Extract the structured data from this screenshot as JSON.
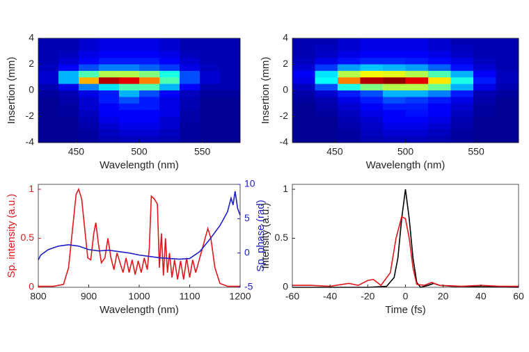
{
  "chart_data": [
    {
      "type": "heatmap",
      "xlabel": "Wavelength (nm)",
      "ylabel": "Insertion (mm)",
      "xlim": [
        420,
        580
      ],
      "ylim": [
        -4,
        4
      ],
      "xticks": [
        450,
        500,
        550
      ],
      "yticks": [
        -4,
        -2,
        0,
        2,
        4
      ],
      "x_edges": [
        420,
        436,
        452,
        468,
        484,
        500,
        516,
        532,
        548,
        564,
        580
      ],
      "y_edges": [
        4,
        3.5,
        3,
        2.5,
        2,
        1.5,
        1,
        0.5,
        0,
        -0.5,
        -1,
        -1.5,
        -2,
        -2.5,
        -3,
        -3.5,
        -4
      ],
      "z": [
        [
          0.05,
          0.05,
          0.08,
          0.1,
          0.1,
          0.1,
          0.08,
          0.05,
          0.05,
          0.05
        ],
        [
          0.05,
          0.05,
          0.08,
          0.1,
          0.1,
          0.1,
          0.08,
          0.05,
          0.05,
          0.05
        ],
        [
          0.05,
          0.06,
          0.1,
          0.12,
          0.12,
          0.12,
          0.1,
          0.06,
          0.05,
          0.05
        ],
        [
          0.05,
          0.08,
          0.12,
          0.15,
          0.15,
          0.15,
          0.12,
          0.08,
          0.05,
          0.05
        ],
        [
          0.06,
          0.12,
          0.2,
          0.25,
          0.25,
          0.22,
          0.18,
          0.1,
          0.06,
          0.05
        ],
        [
          0.08,
          0.3,
          0.45,
          0.55,
          0.55,
          0.5,
          0.4,
          0.2,
          0.08,
          0.05
        ],
        [
          0.08,
          0.3,
          0.7,
          0.95,
          0.9,
          0.75,
          0.45,
          0.2,
          0.08,
          0.05
        ],
        [
          0.05,
          0.1,
          0.25,
          0.35,
          0.45,
          0.45,
          0.3,
          0.12,
          0.05,
          0.05
        ],
        [
          0.03,
          0.05,
          0.1,
          0.15,
          0.3,
          0.2,
          0.12,
          0.06,
          0.03,
          0.03
        ],
        [
          0.02,
          0.04,
          0.08,
          0.15,
          0.2,
          0.15,
          0.1,
          0.05,
          0.02,
          0.02
        ],
        [
          0.02,
          0.03,
          0.08,
          0.12,
          0.15,
          0.15,
          0.1,
          0.05,
          0.02,
          0.02
        ],
        [
          0.02,
          0.03,
          0.06,
          0.12,
          0.12,
          0.12,
          0.1,
          0.04,
          0.02,
          0.02
        ],
        [
          0.02,
          0.02,
          0.05,
          0.1,
          0.12,
          0.12,
          0.08,
          0.04,
          0.02,
          0.02
        ],
        [
          0.02,
          0.02,
          0.04,
          0.08,
          0.1,
          0.1,
          0.08,
          0.03,
          0.02,
          0.02
        ],
        [
          0.02,
          0.02,
          0.03,
          0.06,
          0.08,
          0.08,
          0.06,
          0.03,
          0.02,
          0.02
        ],
        [
          0.02,
          0.02,
          0.03,
          0.05,
          0.06,
          0.06,
          0.05,
          0.03,
          0.02,
          0.02
        ]
      ]
    },
    {
      "type": "heatmap",
      "xlabel": "Wavelength (nm)",
      "ylabel": "Insertion (mm)",
      "xlim": [
        420,
        580
      ],
      "ylim": [
        -4,
        4
      ],
      "xticks": [
        450,
        500,
        550
      ],
      "yticks": [
        -4,
        -2,
        0,
        2,
        4
      ],
      "x_edges": [
        420,
        436,
        452,
        468,
        484,
        500,
        516,
        532,
        548,
        564,
        580
      ],
      "y_edges": [
        4,
        3.5,
        3,
        2.5,
        2,
        1.5,
        1,
        0.5,
        0,
        -0.5,
        -1,
        -1.5,
        -2,
        -2.5,
        -3,
        -3.5,
        -4
      ],
      "z": [
        [
          0.05,
          0.05,
          0.08,
          0.1,
          0.1,
          0.1,
          0.08,
          0.05,
          0.05,
          0.05
        ],
        [
          0.05,
          0.06,
          0.08,
          0.1,
          0.1,
          0.1,
          0.08,
          0.06,
          0.05,
          0.05
        ],
        [
          0.05,
          0.07,
          0.1,
          0.12,
          0.12,
          0.12,
          0.1,
          0.07,
          0.05,
          0.05
        ],
        [
          0.06,
          0.1,
          0.14,
          0.16,
          0.16,
          0.15,
          0.13,
          0.1,
          0.06,
          0.05
        ],
        [
          0.08,
          0.18,
          0.28,
          0.32,
          0.3,
          0.28,
          0.22,
          0.14,
          0.08,
          0.05
        ],
        [
          0.12,
          0.35,
          0.55,
          0.62,
          0.6,
          0.55,
          0.45,
          0.3,
          0.12,
          0.06
        ],
        [
          0.1,
          0.38,
          0.75,
          0.95,
          0.98,
          0.9,
          0.65,
          0.4,
          0.15,
          0.06
        ],
        [
          0.06,
          0.2,
          0.4,
          0.5,
          0.55,
          0.55,
          0.48,
          0.3,
          0.1,
          0.05
        ],
        [
          0.04,
          0.08,
          0.15,
          0.2,
          0.3,
          0.3,
          0.25,
          0.15,
          0.05,
          0.03
        ],
        [
          0.03,
          0.05,
          0.1,
          0.15,
          0.2,
          0.18,
          0.15,
          0.1,
          0.04,
          0.02
        ],
        [
          0.02,
          0.04,
          0.08,
          0.12,
          0.15,
          0.15,
          0.12,
          0.08,
          0.03,
          0.02
        ],
        [
          0.02,
          0.03,
          0.06,
          0.1,
          0.12,
          0.14,
          0.12,
          0.06,
          0.03,
          0.02
        ],
        [
          0.02,
          0.02,
          0.05,
          0.08,
          0.12,
          0.12,
          0.1,
          0.05,
          0.02,
          0.02
        ],
        [
          0.02,
          0.02,
          0.04,
          0.07,
          0.1,
          0.1,
          0.08,
          0.04,
          0.02,
          0.02
        ],
        [
          0.02,
          0.02,
          0.03,
          0.06,
          0.08,
          0.08,
          0.06,
          0.03,
          0.02,
          0.02
        ],
        [
          0.02,
          0.02,
          0.03,
          0.05,
          0.06,
          0.06,
          0.05,
          0.03,
          0.02,
          0.02
        ]
      ]
    },
    {
      "type": "line",
      "xlabel": "Wavelength (nm)",
      "ylabel": "Sp. intensity (a.u.)",
      "y2label": "Sp. phase (rad)",
      "ycolor": "#e0161b",
      "y2color": "#1c1cc8",
      "xlim": [
        800,
        1200
      ],
      "ylim": [
        0,
        1.05
      ],
      "y2lim": [
        -5,
        10
      ],
      "xticks": [
        800,
        900,
        1000,
        1100,
        1200
      ],
      "yticks": [
        0,
        0.5,
        1
      ],
      "y2ticks": [
        -5,
        0,
        5,
        10
      ],
      "series": [
        {
          "color": "#e0161b",
          "x": [
            800,
            830,
            850,
            860,
            868,
            875,
            880,
            886,
            892,
            898,
            904,
            910,
            914,
            919,
            925,
            932,
            938,
            944,
            950,
            956,
            962,
            968,
            974,
            980,
            986,
            992,
            998,
            1004,
            1010,
            1016,
            1020,
            1024,
            1030,
            1036,
            1040,
            1044,
            1048,
            1052,
            1056,
            1060,
            1065,
            1070,
            1076,
            1082,
            1088,
            1094,
            1100,
            1106,
            1112,
            1120,
            1128,
            1136,
            1142,
            1150,
            1160,
            1175,
            1200
          ],
          "values": [
            0.01,
            0.01,
            0.03,
            0.2,
            0.6,
            0.95,
            1.0,
            0.9,
            0.6,
            0.3,
            0.28,
            0.55,
            0.66,
            0.45,
            0.25,
            0.3,
            0.5,
            0.3,
            0.18,
            0.35,
            0.25,
            0.15,
            0.3,
            0.15,
            0.28,
            0.13,
            0.27,
            0.15,
            0.3,
            0.18,
            0.4,
            0.93,
            0.9,
            0.85,
            0.2,
            0.55,
            0.12,
            0.5,
            0.15,
            0.35,
            0.1,
            0.28,
            0.08,
            0.27,
            0.08,
            0.3,
            0.1,
            0.28,
            0.15,
            0.3,
            0.45,
            0.6,
            0.5,
            0.2,
            0.04,
            0.01,
            0.01
          ]
        },
        {
          "color": "#1c1cc8",
          "axis": "y2",
          "x": [
            800,
            805,
            820,
            840,
            860,
            880,
            900,
            920,
            940,
            960,
            980,
            1000,
            1020,
            1040,
            1060,
            1080,
            1100,
            1120,
            1140,
            1160,
            1175,
            1182,
            1186,
            1190,
            1195,
            1200
          ],
          "values": [
            -1.0,
            -0.3,
            0.5,
            1.0,
            1.2,
            1.0,
            0.5,
            0.3,
            0.4,
            0.2,
            0,
            -0.3,
            -0.5,
            -0.7,
            -0.8,
            -0.9,
            -0.8,
            0.2,
            2,
            4,
            6,
            8,
            7,
            9,
            6.5,
            5.5
          ]
        }
      ]
    },
    {
      "type": "line",
      "xlabel": "Time (fs)",
      "ylabel": "Intensity (a.u.)",
      "xlim": [
        -60,
        60
      ],
      "ylim": [
        0,
        1.05
      ],
      "xticks": [
        -60,
        -40,
        -20,
        0,
        20,
        40,
        60
      ],
      "yticks": [
        0,
        0.5,
        1
      ],
      "series": [
        {
          "color": "#000000",
          "x": [
            -60,
            -20,
            -10,
            -6,
            -4,
            -2,
            0,
            2,
            4,
            6,
            8,
            12,
            15,
            18,
            25,
            60
          ],
          "values": [
            0,
            0,
            0.01,
            0.1,
            0.3,
            0.7,
            1.0,
            0.7,
            0.3,
            0.05,
            0,
            0.02,
            0.04,
            0.02,
            0.01,
            0
          ]
        },
        {
          "color": "#e0161b",
          "x": [
            -60,
            -50,
            -40,
            -30,
            -25,
            -20,
            -17,
            -13,
            -8,
            -5,
            -2,
            0,
            2,
            4,
            6,
            10,
            14,
            18,
            30,
            40,
            50,
            60
          ],
          "values": [
            0.02,
            0.02,
            0.01,
            0.04,
            0.02,
            0.07,
            0.08,
            0.02,
            0.15,
            0.5,
            0.72,
            0.7,
            0.5,
            0.2,
            0.03,
            0.02,
            0.05,
            0.02,
            0.01,
            0.02,
            0.01,
            0.01
          ]
        }
      ]
    }
  ]
}
